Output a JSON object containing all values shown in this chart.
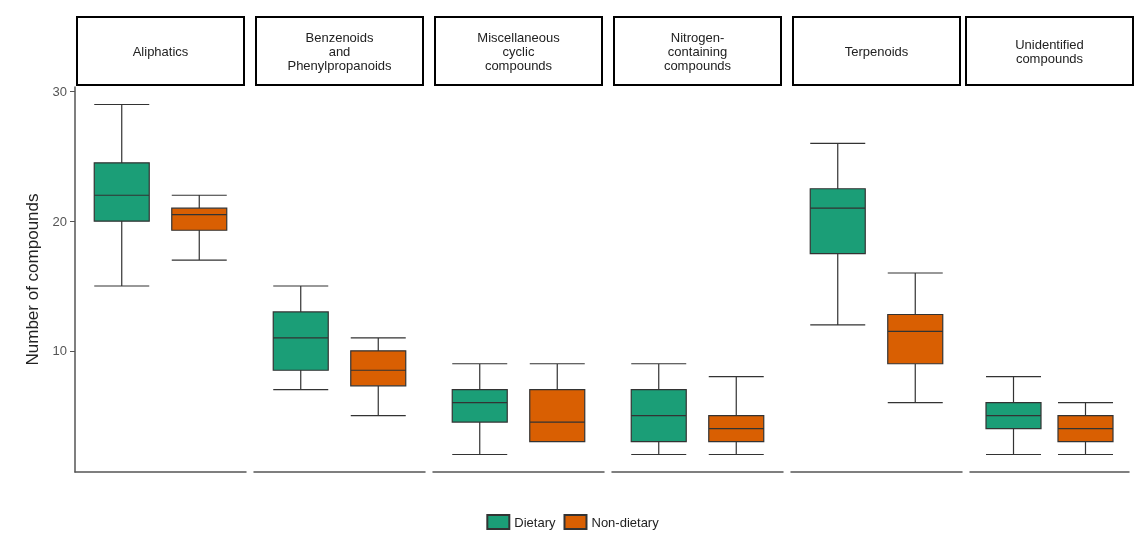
{
  "chart_data": {
    "type": "box",
    "ylabel": "Number of compounds",
    "categories": [
      "Aliphatics",
      "Benzenoids\nand\nPhenylpropanoids",
      "Miscellaneous\ncyclic\ncompounds",
      "Nitrogen-\ncontaining\ncompounds",
      "Terpenoids",
      "Unidentified\ncompounds"
    ],
    "ylim": [
      0.65,
      30.35
    ],
    "yticks": [
      10,
      20,
      30
    ],
    "legend": "bottom",
    "series": [
      {
        "name": "Dietary",
        "color": "#1b9e77",
        "boxes": [
          {
            "low": 15,
            "q1": 20,
            "median": 22,
            "q3": 24.5,
            "high": 29
          },
          {
            "low": 7,
            "q1": 8.5,
            "median": 11,
            "q3": 13,
            "high": 15
          },
          {
            "low": 2,
            "q1": 4.5,
            "median": 6,
            "q3": 7,
            "high": 9
          },
          {
            "low": 2,
            "q1": 3,
            "median": 5,
            "q3": 7,
            "high": 9
          },
          {
            "low": 12,
            "q1": 17.5,
            "median": 21,
            "q3": 22.5,
            "high": 26
          },
          {
            "low": 2,
            "q1": 4,
            "median": 5,
            "q3": 6,
            "high": 8
          }
        ]
      },
      {
        "name": "Non-dietary",
        "color": "#d95f02",
        "boxes": [
          {
            "low": 17,
            "q1": 19.3,
            "median": 20.5,
            "q3": 21,
            "high": 22
          },
          {
            "low": 5,
            "q1": 7.3,
            "median": 8.5,
            "q3": 10,
            "high": 11
          },
          {
            "low": 3,
            "q1": 3,
            "median": 4.5,
            "q3": 7,
            "high": 9
          },
          {
            "low": 2,
            "q1": 3,
            "median": 4,
            "q3": 5,
            "high": 8
          },
          {
            "low": 6,
            "q1": 9,
            "median": 11.5,
            "q3": 12.8,
            "high": 16
          },
          {
            "low": 2,
            "q1": 3,
            "median": 4,
            "q3": 5,
            "high": 6
          }
        ]
      }
    ]
  }
}
